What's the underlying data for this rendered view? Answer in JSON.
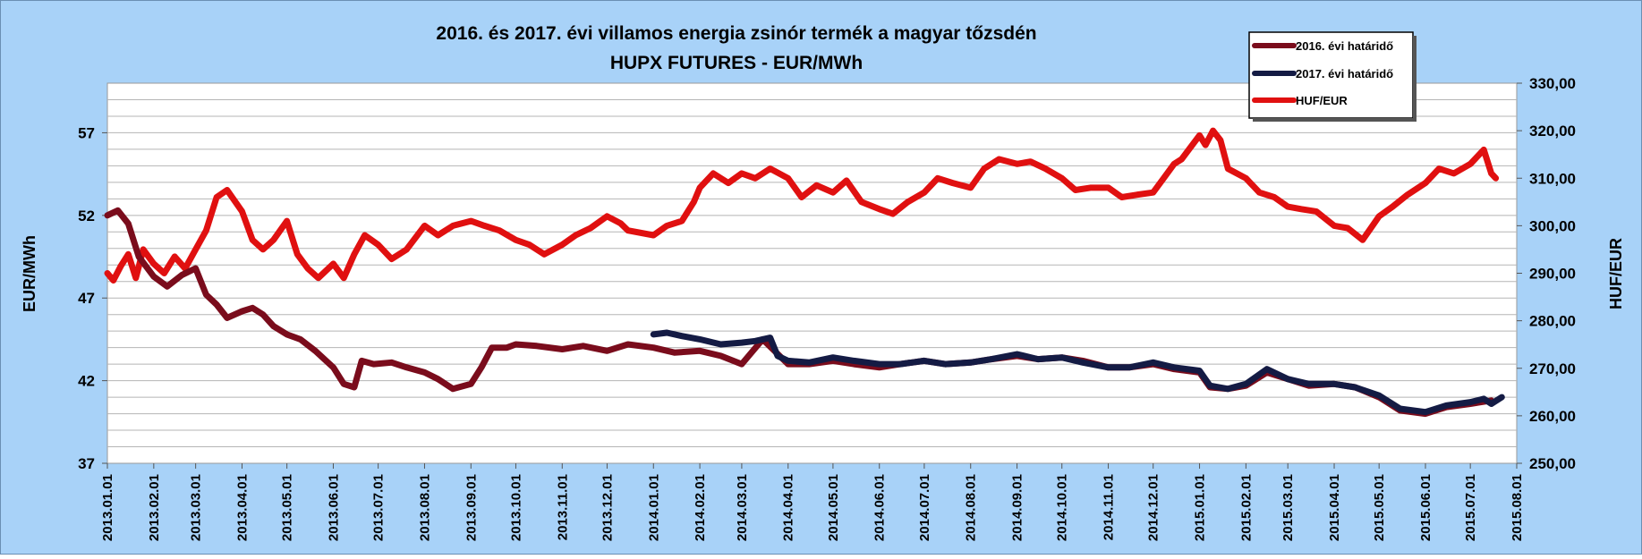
{
  "chart_data": {
    "type": "line",
    "title": "2016. és 2017. évi villamos energia zsinór termék a magyar tőzsdén",
    "subtitle": "HUPX FUTURES - EUR/MWh",
    "ylabel_left": "EUR/MWh",
    "ylabel_right": "HUF/EUR",
    "y_left_lim": [
      37,
      60
    ],
    "y_left_ticks": [
      "37",
      "42",
      "47",
      "52",
      "57"
    ],
    "y_left_tick_values": [
      37,
      42,
      47,
      52,
      57
    ],
    "y_right_lim": [
      250,
      330
    ],
    "y_right_ticks": [
      "250,00",
      "260,00",
      "270,00",
      "280,00",
      "290,00",
      "300,00",
      "310,00",
      "320,00",
      "330,00"
    ],
    "y_right_tick_values": [
      250,
      260,
      270,
      280,
      290,
      300,
      310,
      320,
      330
    ],
    "x_ticks": [
      "2013.01.01",
      "2013.02.01",
      "2013.03.01",
      "2013.04.01",
      "2013.05.01",
      "2013.06.01",
      "2013.07.01",
      "2013.08.01",
      "2013.09.01",
      "2013.10.01",
      "2013.11.01",
      "2013.12.01",
      "2014.01.01",
      "2014.02.01",
      "2014.03.01",
      "2014.04.01",
      "2014.05.01",
      "2014.06.01",
      "2014.07.01",
      "2014.08.01",
      "2014.09.01",
      "2014.10.01",
      "2014.11.01",
      "2014.12.01",
      "2015.01.01",
      "2015.02.01",
      "2015.03.01",
      "2015.04.01",
      "2015.05.01",
      "2015.06.01",
      "2015.07.01",
      "2015.08.01"
    ],
    "grid": true,
    "legend_position": "top-right",
    "series": [
      {
        "name": "2016. évi határidő",
        "axis": "left",
        "color": "#7a0c1c",
        "points": [
          [
            "2013.01.01",
            52.0
          ],
          [
            "2013.01.08",
            52.3
          ],
          [
            "2013.01.15",
            51.5
          ],
          [
            "2013.01.22",
            49.5
          ],
          [
            "2013.02.01",
            48.3
          ],
          [
            "2013.02.10",
            47.7
          ],
          [
            "2013.02.20",
            48.4
          ],
          [
            "2013.03.01",
            48.8
          ],
          [
            "2013.03.08",
            47.2
          ],
          [
            "2013.03.15",
            46.6
          ],
          [
            "2013.03.22",
            45.8
          ],
          [
            "2013.04.01",
            46.2
          ],
          [
            "2013.04.08",
            46.4
          ],
          [
            "2013.04.15",
            46.0
          ],
          [
            "2013.04.22",
            45.3
          ],
          [
            "2013.05.01",
            44.8
          ],
          [
            "2013.05.10",
            44.5
          ],
          [
            "2013.05.20",
            43.8
          ],
          [
            "2013.06.01",
            42.8
          ],
          [
            "2013.06.08",
            41.8
          ],
          [
            "2013.06.15",
            41.6
          ],
          [
            "2013.06.20",
            43.2
          ],
          [
            "2013.06.28",
            43.0
          ],
          [
            "2013.07.10",
            43.1
          ],
          [
            "2013.07.20",
            42.8
          ],
          [
            "2013.08.01",
            42.5
          ],
          [
            "2013.08.10",
            42.1
          ],
          [
            "2013.08.20",
            41.5
          ],
          [
            "2013.09.01",
            41.8
          ],
          [
            "2013.09.08",
            42.8
          ],
          [
            "2013.09.15",
            44.0
          ],
          [
            "2013.09.25",
            44.0
          ],
          [
            "2013.10.01",
            44.2
          ],
          [
            "2013.10.15",
            44.1
          ],
          [
            "2013.11.01",
            43.9
          ],
          [
            "2013.11.15",
            44.1
          ],
          [
            "2013.12.01",
            43.8
          ],
          [
            "2013.12.15",
            44.2
          ],
          [
            "2014.01.01",
            44.0
          ],
          [
            "2014.01.15",
            43.7
          ],
          [
            "2014.02.01",
            43.8
          ],
          [
            "2014.02.15",
            43.5
          ],
          [
            "2014.03.01",
            43.0
          ],
          [
            "2014.03.15",
            44.5
          ],
          [
            "2014.04.01",
            43.0
          ],
          [
            "2014.04.15",
            43.0
          ],
          [
            "2014.05.01",
            43.2
          ],
          [
            "2014.05.15",
            43.0
          ],
          [
            "2014.06.01",
            42.8
          ],
          [
            "2014.06.15",
            43.0
          ],
          [
            "2014.07.01",
            43.2
          ],
          [
            "2014.07.15",
            43.0
          ],
          [
            "2014.08.01",
            43.1
          ],
          [
            "2014.08.15",
            43.3
          ],
          [
            "2014.09.01",
            43.5
          ],
          [
            "2014.09.15",
            43.3
          ],
          [
            "2014.10.01",
            43.4
          ],
          [
            "2014.10.15",
            43.2
          ],
          [
            "2014.11.01",
            42.8
          ],
          [
            "2014.11.15",
            42.8
          ],
          [
            "2014.12.01",
            43.0
          ],
          [
            "2014.12.15",
            42.7
          ],
          [
            "2015.01.01",
            42.5
          ],
          [
            "2015.01.08",
            41.6
          ],
          [
            "2015.01.20",
            41.5
          ],
          [
            "2015.02.01",
            41.7
          ],
          [
            "2015.02.15",
            42.5
          ],
          [
            "2015.03.01",
            42.1
          ],
          [
            "2015.03.15",
            41.7
          ],
          [
            "2015.04.01",
            41.8
          ],
          [
            "2015.04.15",
            41.6
          ],
          [
            "2015.05.01",
            41.0
          ],
          [
            "2015.05.15",
            40.2
          ],
          [
            "2015.06.01",
            40.0
          ],
          [
            "2015.06.15",
            40.4
          ],
          [
            "2015.07.01",
            40.6
          ],
          [
            "2015.07.15",
            40.8
          ]
        ]
      },
      {
        "name": "2017. évi határidő",
        "axis": "left",
        "color": "#141b44",
        "points": [
          [
            "2014.01.01",
            44.8
          ],
          [
            "2014.01.10",
            44.9
          ],
          [
            "2014.01.20",
            44.7
          ],
          [
            "2014.02.01",
            44.5
          ],
          [
            "2014.02.15",
            44.2
          ],
          [
            "2014.03.01",
            44.3
          ],
          [
            "2014.03.10",
            44.4
          ],
          [
            "2014.03.20",
            44.6
          ],
          [
            "2014.03.25",
            43.5
          ],
          [
            "2014.04.01",
            43.2
          ],
          [
            "2014.04.15",
            43.1
          ],
          [
            "2014.05.01",
            43.4
          ],
          [
            "2014.05.15",
            43.2
          ],
          [
            "2014.06.01",
            43.0
          ],
          [
            "2014.06.15",
            43.0
          ],
          [
            "2014.07.01",
            43.2
          ],
          [
            "2014.07.15",
            43.0
          ],
          [
            "2014.08.01",
            43.1
          ],
          [
            "2014.08.15",
            43.3
          ],
          [
            "2014.09.01",
            43.6
          ],
          [
            "2014.09.15",
            43.3
          ],
          [
            "2014.10.01",
            43.4
          ],
          [
            "2014.10.15",
            43.1
          ],
          [
            "2014.11.01",
            42.8
          ],
          [
            "2014.11.15",
            42.8
          ],
          [
            "2014.12.01",
            43.1
          ],
          [
            "2014.12.15",
            42.8
          ],
          [
            "2015.01.01",
            42.6
          ],
          [
            "2015.01.08",
            41.7
          ],
          [
            "2015.01.20",
            41.5
          ],
          [
            "2015.02.01",
            41.8
          ],
          [
            "2015.02.15",
            42.7
          ],
          [
            "2015.03.01",
            42.1
          ],
          [
            "2015.03.15",
            41.8
          ],
          [
            "2015.04.01",
            41.8
          ],
          [
            "2015.04.15",
            41.6
          ],
          [
            "2015.05.01",
            41.1
          ],
          [
            "2015.05.15",
            40.3
          ],
          [
            "2015.06.01",
            40.1
          ],
          [
            "2015.06.15",
            40.5
          ],
          [
            "2015.07.01",
            40.7
          ],
          [
            "2015.07.10",
            40.9
          ],
          [
            "2015.07.15",
            40.6
          ],
          [
            "2015.07.22",
            41.0
          ]
        ]
      },
      {
        "name": "HUF/EUR",
        "axis": "right",
        "color": "#e01010",
        "points": [
          [
            "2013.01.01",
            290.0
          ],
          [
            "2013.01.05",
            288.5
          ],
          [
            "2013.01.10",
            291.5
          ],
          [
            "2013.01.15",
            294.0
          ],
          [
            "2013.01.20",
            289.0
          ],
          [
            "2013.01.25",
            295.0
          ],
          [
            "2013.02.01",
            292.0
          ],
          [
            "2013.02.08",
            290.0
          ],
          [
            "2013.02.15",
            293.5
          ],
          [
            "2013.02.22",
            291.0
          ],
          [
            "2013.03.01",
            295.0
          ],
          [
            "2013.03.08",
            299.0
          ],
          [
            "2013.03.15",
            306.0
          ],
          [
            "2013.03.22",
            307.5
          ],
          [
            "2013.04.01",
            303.0
          ],
          [
            "2013.04.08",
            297.0
          ],
          [
            "2013.04.15",
            295.0
          ],
          [
            "2013.04.22",
            297.0
          ],
          [
            "2013.05.01",
            301.0
          ],
          [
            "2013.05.08",
            294.0
          ],
          [
            "2013.05.15",
            291.0
          ],
          [
            "2013.05.22",
            289.0
          ],
          [
            "2013.06.01",
            292.0
          ],
          [
            "2013.06.08",
            289.0
          ],
          [
            "2013.06.15",
            294.0
          ],
          [
            "2013.06.22",
            298.0
          ],
          [
            "2013.07.01",
            296.0
          ],
          [
            "2013.07.10",
            293.0
          ],
          [
            "2013.07.20",
            295.0
          ],
          [
            "2013.08.01",
            300.0
          ],
          [
            "2013.08.10",
            298.0
          ],
          [
            "2013.08.20",
            300.0
          ],
          [
            "2013.09.01",
            301.0
          ],
          [
            "2013.09.10",
            300.0
          ],
          [
            "2013.09.20",
            299.0
          ],
          [
            "2013.10.01",
            297.0
          ],
          [
            "2013.10.10",
            296.0
          ],
          [
            "2013.10.20",
            294.0
          ],
          [
            "2013.11.01",
            296.0
          ],
          [
            "2013.11.10",
            298.0
          ],
          [
            "2013.11.20",
            299.5
          ],
          [
            "2013.12.01",
            302.0
          ],
          [
            "2013.12.10",
            300.5
          ],
          [
            "2013.12.15",
            299.0
          ],
          [
            "2014.01.01",
            298.0
          ],
          [
            "2014.01.10",
            300.0
          ],
          [
            "2014.01.20",
            301.0
          ],
          [
            "2014.01.28",
            305.0
          ],
          [
            "2014.02.01",
            308.0
          ],
          [
            "2014.02.10",
            311.0
          ],
          [
            "2014.02.20",
            309.0
          ],
          [
            "2014.03.01",
            311.0
          ],
          [
            "2014.03.10",
            310.0
          ],
          [
            "2014.03.20",
            312.0
          ],
          [
            "2014.04.01",
            310.0
          ],
          [
            "2014.04.10",
            306.0
          ],
          [
            "2014.04.20",
            308.5
          ],
          [
            "2014.05.01",
            307.0
          ],
          [
            "2014.05.10",
            309.5
          ],
          [
            "2014.05.20",
            305.0
          ],
          [
            "2014.06.01",
            303.5
          ],
          [
            "2014.06.10",
            302.5
          ],
          [
            "2014.06.20",
            305.0
          ],
          [
            "2014.07.01",
            307.0
          ],
          [
            "2014.07.10",
            310.0
          ],
          [
            "2014.07.20",
            309.0
          ],
          [
            "2014.08.01",
            308.0
          ],
          [
            "2014.08.10",
            312.0
          ],
          [
            "2014.08.20",
            314.0
          ],
          [
            "2014.09.01",
            313.0
          ],
          [
            "2014.09.10",
            313.5
          ],
          [
            "2014.09.20",
            312.0
          ],
          [
            "2014.10.01",
            310.0
          ],
          [
            "2014.10.10",
            307.5
          ],
          [
            "2014.10.20",
            308.0
          ],
          [
            "2014.11.01",
            308.0
          ],
          [
            "2014.11.10",
            306.0
          ],
          [
            "2014.11.20",
            306.5
          ],
          [
            "2014.12.01",
            307.0
          ],
          [
            "2014.12.08",
            310.0
          ],
          [
            "2014.12.15",
            313.0
          ],
          [
            "2014.12.20",
            314.0
          ],
          [
            "2015.01.01",
            319.0
          ],
          [
            "2015.01.05",
            317.0
          ],
          [
            "2015.01.10",
            320.0
          ],
          [
            "2015.01.15",
            318.0
          ],
          [
            "2015.01.20",
            312.0
          ],
          [
            "2015.02.01",
            310.0
          ],
          [
            "2015.02.10",
            307.0
          ],
          [
            "2015.02.20",
            306.0
          ],
          [
            "2015.03.01",
            304.0
          ],
          [
            "2015.03.10",
            303.5
          ],
          [
            "2015.03.20",
            303.0
          ],
          [
            "2015.04.01",
            300.0
          ],
          [
            "2015.04.10",
            299.5
          ],
          [
            "2015.04.20",
            297.0
          ],
          [
            "2015.05.01",
            302.0
          ],
          [
            "2015.05.10",
            304.0
          ],
          [
            "2015.05.20",
            306.5
          ],
          [
            "2015.06.01",
            309.0
          ],
          [
            "2015.06.10",
            312.0
          ],
          [
            "2015.06.20",
            311.0
          ],
          [
            "2015.07.01",
            313.0
          ],
          [
            "2015.07.10",
            316.0
          ],
          [
            "2015.07.15",
            311.0
          ],
          [
            "2015.07.18",
            310.0
          ]
        ]
      }
    ]
  }
}
